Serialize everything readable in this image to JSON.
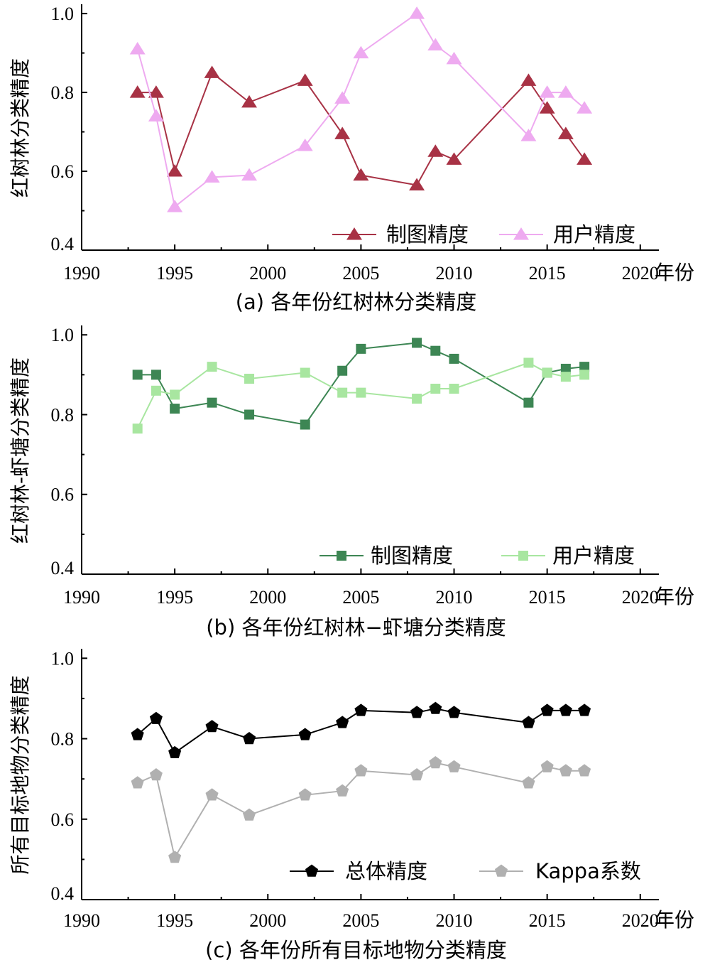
{
  "x_unit_label": "年份",
  "chart_data": [
    {
      "type": "line",
      "caption": "(a) 各年份红树林分类精度",
      "ylabel": "红树林分类精度",
      "xlim": [
        1990,
        2021
      ],
      "ylim": [
        0.4,
        1.02
      ],
      "xticks": [
        1990,
        1995,
        2000,
        2005,
        2010,
        2015,
        2020
      ],
      "yticks": [
        "0.4",
        "0.6",
        "0.8",
        "1.0"
      ],
      "x": [
        1993,
        1994,
        1995,
        1997,
        1999,
        2002,
        2004,
        2005,
        2008,
        2009,
        2010,
        2014,
        2015,
        2016,
        2017
      ],
      "series": [
        {
          "name": "制图精度",
          "color": "#a83245",
          "marker": "triangle",
          "values": [
            0.8,
            0.8,
            0.6,
            0.85,
            0.775,
            0.83,
            0.695,
            0.59,
            0.565,
            0.65,
            0.63,
            0.83,
            0.76,
            0.695,
            0.63
          ]
        },
        {
          "name": "用户精度",
          "color": "#eeaaf0",
          "marker": "triangle",
          "values": [
            0.91,
            0.74,
            0.51,
            0.585,
            0.59,
            0.665,
            0.785,
            0.9,
            1.0,
            0.92,
            0.885,
            0.69,
            0.8,
            0.8,
            0.76
          ]
        }
      ],
      "legend": "bottom-right"
    },
    {
      "type": "line",
      "caption": "(b) 各年份红树林−虾塘分类精度",
      "ylabel": "红树林-虾塘分类精度",
      "xlim": [
        1990,
        2021
      ],
      "ylim": [
        0.4,
        1.02
      ],
      "xticks": [
        1990,
        1995,
        2000,
        2005,
        2010,
        2015,
        2020
      ],
      "yticks": [
        "0.4",
        "0.6",
        "0.8",
        "1.0"
      ],
      "x": [
        1993,
        1994,
        1995,
        1997,
        1999,
        2002,
        2004,
        2005,
        2008,
        2009,
        2010,
        2014,
        2015,
        2016,
        2017
      ],
      "series": [
        {
          "name": "制图精度",
          "color": "#3d8654",
          "marker": "square",
          "values": [
            0.9,
            0.9,
            0.815,
            0.83,
            0.8,
            0.775,
            0.91,
            0.965,
            0.98,
            0.96,
            0.94,
            0.83,
            0.905,
            0.915,
            0.92
          ]
        },
        {
          "name": "用户精度",
          "color": "#a8e6a0",
          "marker": "square",
          "values": [
            0.765,
            0.86,
            0.85,
            0.92,
            0.89,
            0.905,
            0.855,
            0.855,
            0.84,
            0.865,
            0.865,
            0.93,
            0.905,
            0.895,
            0.9
          ]
        }
      ],
      "legend": "bottom-right"
    },
    {
      "type": "line",
      "caption": "(c) 各年份所有目标地物分类精度",
      "ylabel": "所有目标地物分类精度",
      "xlim": [
        1990,
        2021
      ],
      "ylim": [
        0.4,
        1.02
      ],
      "xticks": [
        1990,
        1995,
        2000,
        2005,
        2010,
        2015,
        2020
      ],
      "yticks": [
        "0.4",
        "0.6",
        "0.8",
        "1.0"
      ],
      "x": [
        1993,
        1994,
        1995,
        1997,
        1999,
        2002,
        2004,
        2005,
        2008,
        2009,
        2010,
        2014,
        2015,
        2016,
        2017
      ],
      "series": [
        {
          "name": "总体精度",
          "color": "#000000",
          "marker": "pentagon",
          "values": [
            0.81,
            0.85,
            0.765,
            0.83,
            0.8,
            0.81,
            0.84,
            0.87,
            0.865,
            0.875,
            0.865,
            0.84,
            0.87,
            0.87,
            0.87
          ]
        },
        {
          "name": "Kappa系数",
          "color": "#b0b0b0",
          "marker": "pentagon",
          "values": [
            0.69,
            0.71,
            0.505,
            0.66,
            0.61,
            0.66,
            0.67,
            0.72,
            0.71,
            0.74,
            0.73,
            0.69,
            0.73,
            0.72,
            0.72
          ]
        }
      ],
      "legend": "bottom-right"
    }
  ]
}
